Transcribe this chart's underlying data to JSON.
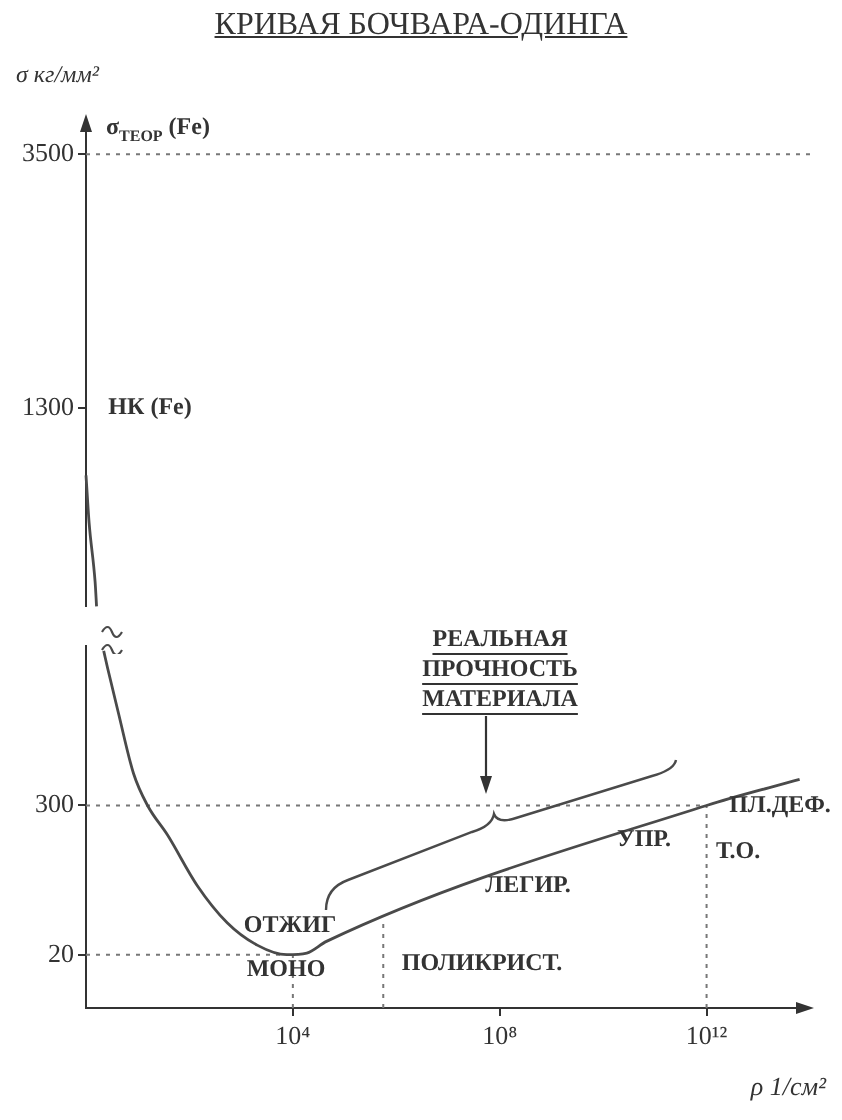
{
  "chart_data": [
    {
      "type": "line",
      "title": "КРИВАЯ БОЧВАРА-ОДИНГА",
      "ylabel": "σ кг/мм²",
      "log": "xy",
      "xlim": [
        1,
        100000000000000
      ],
      "ylim": [
        600,
        4000
      ],
      "yticks": [
        1300,
        3500
      ],
      "tick_labels": "y",
      "grid": false,
      "marker": "none",
      "line_style": "solid",
      "series": [
        {
          "color": "#4a4a4a",
          "x": [
            1,
            1.15,
            1.5,
            1.6
          ],
          "values": [
            1000,
            830,
            660,
            600
          ]
        }
      ],
      "ref_lines": [
        {
          "axis": "y",
          "value": 3500,
          "label": "σ$_{ТЕОР}$ (Fe)",
          "line_style": "dotted",
          "color": "#777777"
        }
      ],
      "annotations": [
        "НК (Fe)"
      ]
    },
    {
      "type": "line",
      "xlabel": "ρ 1/см²",
      "log": "x",
      "xlim": [
        1,
        100000000000000
      ],
      "xticks": [
        {
          "value": 10000,
          "label": "10⁴"
        },
        {
          "value": 100000000,
          "label": "10⁸"
        },
        {
          "value": 1000000000000,
          "label": "10¹²"
        }
      ],
      "ylim": [
        -80,
        600
      ],
      "yticks": [
        20,
        300
      ],
      "grid": false,
      "marker": "none",
      "line_style": "solid",
      "series": [
        {
          "color": "#4a4a4a",
          "x": [
            2.2,
            2.6,
            4.2,
            8.3,
            15.5,
            38,
            141,
            537,
            2040,
            7600,
            18600,
            44700,
            1000000000000,
            63000000000000
          ],
          "values": [
            590,
            559,
            475,
            360,
            300,
            244,
            150,
            80,
            38,
            20,
            23,
            45,
            300,
            349
          ]
        }
      ],
      "ref_lines": [
        {
          "axis": "y",
          "value": 20,
          "line_style": "dotted",
          "color": "#777777"
        },
        {
          "axis": "y",
          "value": 300,
          "line_style": "dotted",
          "color": "#777777"
        },
        {
          "axis": "x",
          "value": 10000,
          "line_style": "dotted",
          "color": "#777777"
        },
        {
          "axis": "x",
          "value": 560000,
          "line_style": "dotted",
          "color": "#777777"
        },
        {
          "axis": "x",
          "value": 1000000000000,
          "line_style": "dotted",
          "color": "#777777"
        }
      ],
      "annotations": [
        "ОТЖИГ",
        "МОНО",
        "ПОЛИКРИСТ.",
        "ЛЕГИР.",
        "УПР.",
        "ПЛ.ДЕФ.",
        "Т.О.",
        "РЕАЛЬНАЯ\nПРОЧНОСТЬ\nМАТЕРИАЛА"
      ]
    }
  ]
}
